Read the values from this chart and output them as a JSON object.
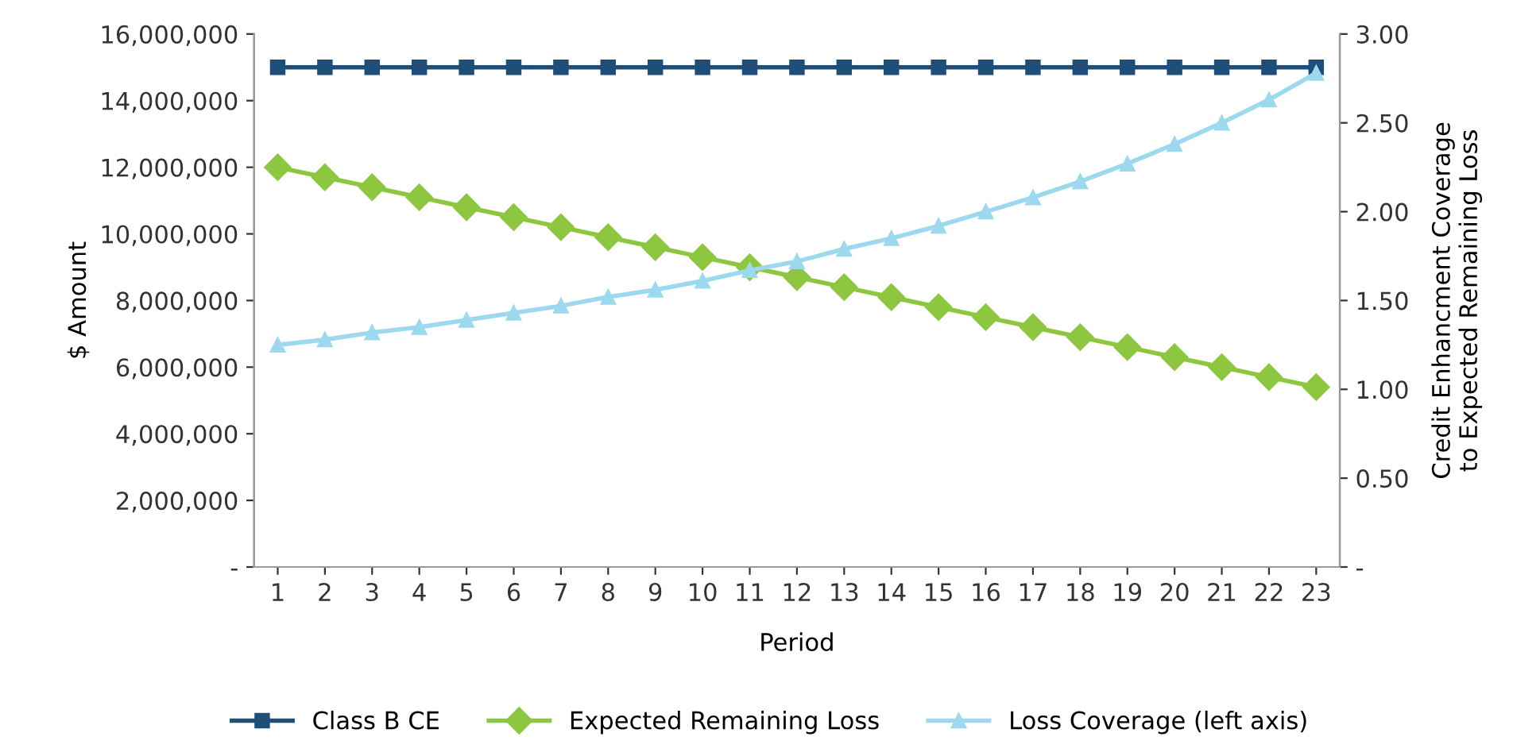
{
  "chart_data": {
    "type": "line",
    "xlabel": "Period",
    "ylabel": "$ Amount",
    "y2label": "Credit Enhancment Coverage\nto Expected Remaining Loss",
    "categories": [
      "1",
      "2",
      "3",
      "4",
      "5",
      "6",
      "7",
      "8",
      "9",
      "10",
      "11",
      "12",
      "13",
      "14",
      "15",
      "16",
      "17",
      "18",
      "19",
      "20",
      "21",
      "22",
      "23"
    ],
    "series": [
      {
        "name": "Class B CE",
        "color": "#1f4e79",
        "marker": "square",
        "values": [
          15000000,
          15000000,
          15000000,
          15000000,
          15000000,
          15000000,
          15000000,
          15000000,
          15000000,
          15000000,
          15000000,
          15000000,
          15000000,
          15000000,
          15000000,
          15000000,
          15000000,
          15000000,
          15000000,
          15000000,
          15000000,
          15000000,
          15000000
        ]
      },
      {
        "name": "Expected Remaining Loss",
        "color": "#8dc63f",
        "marker": "diamond",
        "values": [
          12000000,
          11700000,
          11400000,
          11100000,
          10800000,
          10500000,
          10200000,
          9900000,
          9600000,
          9300000,
          9000000,
          8700000,
          8400000,
          8100000,
          7800000,
          7500000,
          7200000,
          6900000,
          6600000,
          6300000,
          6000000,
          5700000,
          5400000
        ]
      },
      {
        "name": "Loss Coverage (left axis)",
        "color": "#9dd9ee",
        "marker": "triangle",
        "axis": "y2",
        "values": [
          1.25,
          1.28,
          1.32,
          1.35,
          1.39,
          1.43,
          1.47,
          1.52,
          1.56,
          1.61,
          1.67,
          1.72,
          1.79,
          1.85,
          1.92,
          2.0,
          2.08,
          2.17,
          2.27,
          2.38,
          2.5,
          2.63,
          2.78
        ]
      }
    ],
    "ylim": [
      0,
      16000000
    ],
    "yticks": [
      {
        "value": 0,
        "label": "-"
      },
      {
        "value": 2000000,
        "label": "2,000,000"
      },
      {
        "value": 4000000,
        "label": "4,000,000"
      },
      {
        "value": 6000000,
        "label": "6,000,000"
      },
      {
        "value": 8000000,
        "label": "8,000,000"
      },
      {
        "value": 10000000,
        "label": "10,000,000"
      },
      {
        "value": 12000000,
        "label": "12,000,000"
      },
      {
        "value": 14000000,
        "label": "14,000,000"
      },
      {
        "value": 16000000,
        "label": "16,000,000"
      }
    ],
    "y2lim": [
      0,
      3
    ],
    "y2ticks": [
      {
        "value": 0,
        "label": "-"
      },
      {
        "value": 0.5,
        "label": "0.50"
      },
      {
        "value": 1,
        "label": "1.00"
      },
      {
        "value": 1.5,
        "label": "1.50"
      },
      {
        "value": 2,
        "label": "2.00"
      },
      {
        "value": 2.5,
        "label": "2.50"
      },
      {
        "value": 3,
        "label": "3.00"
      }
    ],
    "grid": false,
    "legend": "bottom",
    "line_style": "solid"
  }
}
